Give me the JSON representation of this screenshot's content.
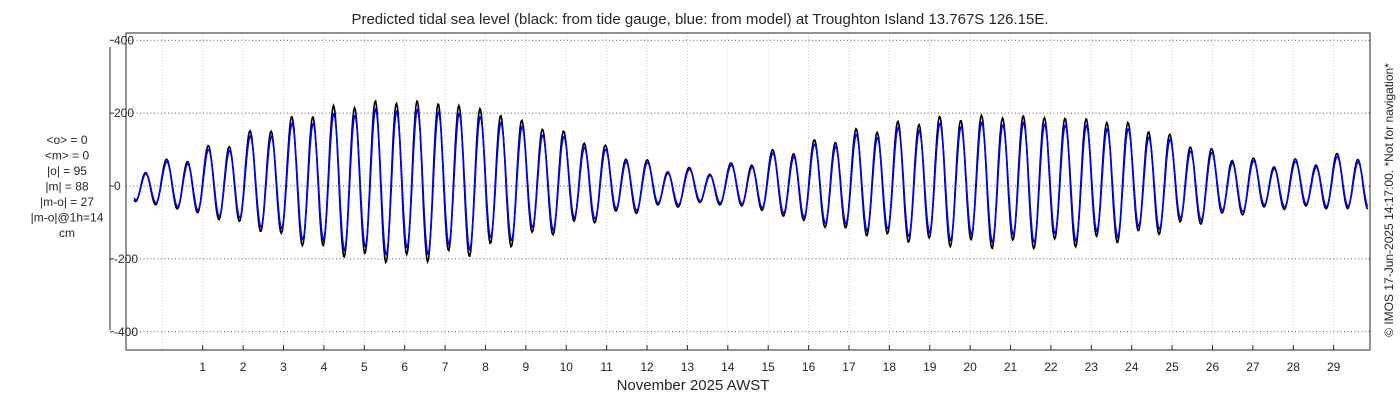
{
  "chart_data": {
    "type": "line",
    "title": "Predicted tidal sea level (black: from tide gauge, blue: from model) at Troughton Island 13.767S 126.15E.",
    "xlabel": "November 2025 AWST",
    "ylabel": "",
    "xlim": [
      -0.9,
      29.9
    ],
    "ylim": [
      -450,
      420
    ],
    "yticks": [
      -400,
      -200,
      0,
      200,
      400
    ],
    "yticklabels": [
      "-400",
      "-200",
      "0",
      "200",
      "400"
    ],
    "xticks": [
      1,
      2,
      3,
      4,
      5,
      6,
      7,
      8,
      9,
      10,
      11,
      12,
      13,
      14,
      15,
      16,
      17,
      18,
      19,
      20,
      21,
      22,
      23,
      24,
      25,
      26,
      27,
      28,
      29
    ],
    "xticklabels": [
      "1",
      "2",
      "3",
      "4",
      "5",
      "6",
      "7",
      "8",
      "9",
      "10",
      "11",
      "12",
      "13",
      "14",
      "15",
      "16",
      "17",
      "18",
      "19",
      "20",
      "21",
      "22",
      "23",
      "24",
      "25",
      "26",
      "27",
      "28",
      "29"
    ],
    "grid": true,
    "tidal_model": {
      "semidiurnal_period_days": 0.5175,
      "diurnal_period_days": 1.0,
      "x_start": -0.7,
      "x_end": 29.85,
      "samples_per_day": 48,
      "first_high_tide_day": 0.1,
      "range_envelope_points": [
        {
          "day": -0.7,
          "high": 50,
          "low": -50
        },
        {
          "day": 0.0,
          "high": 65,
          "low": -60
        },
        {
          "day": 1.0,
          "high": 105,
          "low": -90
        },
        {
          "day": 2.0,
          "high": 150,
          "low": -120
        },
        {
          "day": 3.0,
          "high": 195,
          "low": -160
        },
        {
          "day": 4.0,
          "high": 235,
          "low": -200
        },
        {
          "day": 5.0,
          "high": 255,
          "low": -225
        },
        {
          "day": 6.0,
          "high": 262,
          "low": -230
        },
        {
          "day": 7.0,
          "high": 255,
          "low": -220
        },
        {
          "day": 8.0,
          "high": 235,
          "low": -200
        },
        {
          "day": 9.0,
          "high": 195,
          "low": -165
        },
        {
          "day": 10.0,
          "high": 160,
          "low": -130
        },
        {
          "day": 11.0,
          "high": 115,
          "low": -95
        },
        {
          "day": 12.0,
          "high": 70,
          "low": -70
        },
        {
          "day": 13.0,
          "high": 45,
          "low": -55
        },
        {
          "day": 14.0,
          "high": 55,
          "low": -55
        },
        {
          "day": 15.0,
          "high": 95,
          "low": -80
        },
        {
          "day": 16.0,
          "high": 125,
          "low": -115
        },
        {
          "day": 17.0,
          "high": 160,
          "low": -140
        },
        {
          "day": 18.0,
          "high": 185,
          "low": -160
        },
        {
          "day": 19.0,
          "high": 205,
          "low": -175
        },
        {
          "day": 20.0,
          "high": 212,
          "low": -182
        },
        {
          "day": 21.0,
          "high": 215,
          "low": -185
        },
        {
          "day": 22.0,
          "high": 212,
          "low": -182
        },
        {
          "day": 23.0,
          "high": 205,
          "low": -175
        },
        {
          "day": 24.0,
          "high": 190,
          "low": -160
        },
        {
          "day": 25.0,
          "high": 150,
          "low": -130
        },
        {
          "day": 26.0,
          "high": 105,
          "low": -100
        },
        {
          "day": 27.0,
          "high": 75,
          "low": -75
        },
        {
          "day": 28.0,
          "high": 70,
          "low": -65
        },
        {
          "day": 29.0,
          "high": 85,
          "low": -70
        },
        {
          "day": 29.85,
          "high": 100,
          "low": -75
        }
      ],
      "diurnal_amplitude_cm": 28,
      "model_amplitude_ratio": 0.9
    },
    "series": [
      {
        "name": "tide gauge",
        "color": "#000000"
      },
      {
        "name": "model",
        "color": "#0000ff"
      }
    ],
    "statistics": [
      "<o> = 0",
      "<m> = 0",
      "|o| = 95",
      "|m| = 88",
      "|m-o| = 27",
      "|m-o|@1h=14",
      "cm"
    ],
    "side_note": "© IMOS 17-Jun-2025 14:17:00. *Not for navigation*"
  }
}
